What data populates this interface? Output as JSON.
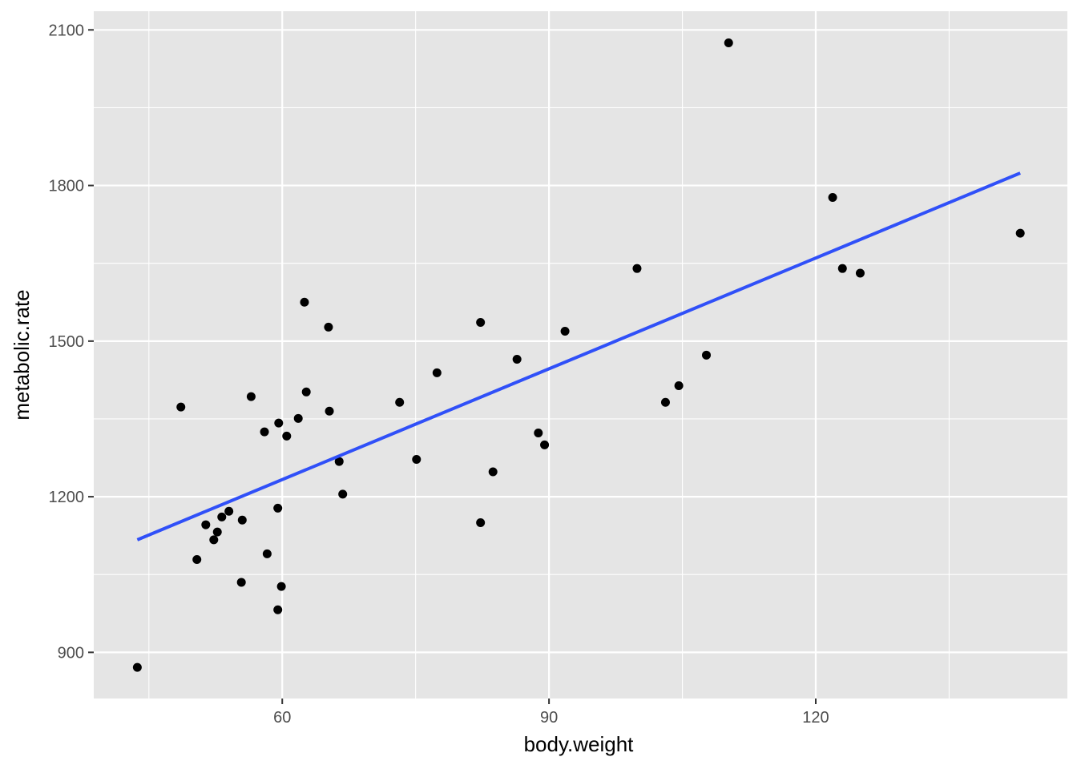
{
  "chart_data": {
    "type": "scatter",
    "title": "",
    "xlabel": "body.weight",
    "ylabel": "metabolic.rate",
    "xlim": [
      38.8,
      148.3
    ],
    "ylim": [
      811,
      2136
    ],
    "xticks": [
      60,
      90,
      120
    ],
    "yticks": [
      900,
      1200,
      1500,
      1800,
      2100
    ],
    "xminor": [
      45,
      75,
      105,
      135
    ],
    "yminor": [
      1050,
      1350,
      1650,
      1950
    ],
    "grid": true,
    "colors": {
      "panel": "#e5e5e5",
      "grid": "#ffffff",
      "point": "#000000",
      "line": "#3050f8"
    },
    "points": [
      [
        43.7,
        871
      ],
      [
        48.6,
        1373
      ],
      [
        50.4,
        1079
      ],
      [
        51.4,
        1146
      ],
      [
        52.3,
        1117
      ],
      [
        52.7,
        1132
      ],
      [
        53.2,
        1161
      ],
      [
        54.0,
        1172
      ],
      [
        55.4,
        1035
      ],
      [
        55.5,
        1155
      ],
      [
        56.5,
        1393
      ],
      [
        58.0,
        1325
      ],
      [
        58.3,
        1090
      ],
      [
        59.5,
        1178
      ],
      [
        59.5,
        982
      ],
      [
        59.6,
        1342
      ],
      [
        59.9,
        1027
      ],
      [
        60.5,
        1317
      ],
      [
        61.8,
        1351
      ],
      [
        62.5,
        1575
      ],
      [
        62.7,
        1402
      ],
      [
        65.2,
        1527
      ],
      [
        65.3,
        1365
      ],
      [
        66.4,
        1268
      ],
      [
        66.8,
        1205
      ],
      [
        73.2,
        1382
      ],
      [
        75.1,
        1272
      ],
      [
        77.4,
        1439
      ],
      [
        82.3,
        1536
      ],
      [
        82.3,
        1150
      ],
      [
        83.7,
        1248
      ],
      [
        86.4,
        1465
      ],
      [
        88.8,
        1323
      ],
      [
        89.5,
        1300
      ],
      [
        91.8,
        1519
      ],
      [
        99.9,
        1640
      ],
      [
        103.1,
        1382
      ],
      [
        104.6,
        1414
      ],
      [
        107.7,
        1473
      ],
      [
        110.2,
        2075
      ],
      [
        121.9,
        1777
      ],
      [
        123.0,
        1640
      ],
      [
        125.0,
        1631
      ],
      [
        143.0,
        1708
      ]
    ],
    "fit_line": {
      "method": "lm",
      "x": [
        43.7,
        143.0
      ],
      "y": [
        1117,
        1824
      ]
    }
  }
}
